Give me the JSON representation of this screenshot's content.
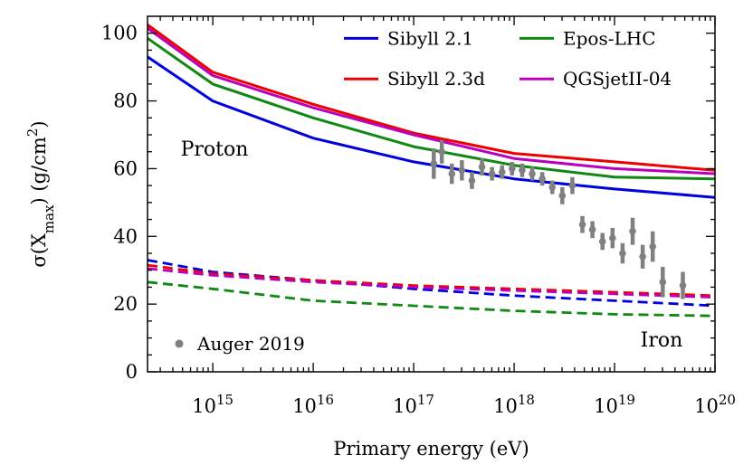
{
  "chart_data": {
    "type": "line",
    "xlabel": "Primary energy (eV)",
    "ylabel_prefix": "σ(X",
    "ylabel_sub": "max",
    "ylabel_mid": ") (g/cm",
    "ylabel_sup": "2",
    "ylabel_suffix": ")",
    "xscale": "log10",
    "xlim": [
      14.35,
      20.0
    ],
    "ylim": [
      0,
      105
    ],
    "x_ticks": [
      {
        "exp": 15,
        "base": "10",
        "power": "15"
      },
      {
        "exp": 16,
        "base": "10",
        "power": "16"
      },
      {
        "exp": 17,
        "base": "10",
        "power": "17"
      },
      {
        "exp": 18,
        "base": "10",
        "power": "18"
      },
      {
        "exp": 19,
        "base": "10",
        "power": "19"
      },
      {
        "exp": 20,
        "base": "10",
        "power": "20"
      }
    ],
    "y_ticks": [
      {
        "value": 0,
        "label": "0"
      },
      {
        "value": 20,
        "label": "20"
      },
      {
        "value": 40,
        "label": "40"
      },
      {
        "value": 60,
        "label": "60"
      },
      {
        "value": 80,
        "label": "80"
      },
      {
        "value": 100,
        "label": "100"
      }
    ],
    "series": [
      {
        "name": "Sibyll 2.1",
        "color": "#0000dd",
        "group": "proton",
        "style": "solid",
        "log_x": [
          14.35,
          15.0,
          16.0,
          17.0,
          18.0,
          19.0,
          20.0
        ],
        "y": [
          93.0,
          80.0,
          69.0,
          62.0,
          57.0,
          54.0,
          51.5
        ]
      },
      {
        "name": "Sibyll 2.3d",
        "color": "#ee0000",
        "group": "proton",
        "style": "solid",
        "log_x": [
          14.35,
          15.0,
          16.0,
          17.0,
          18.0,
          19.0,
          20.0
        ],
        "y": [
          102.5,
          88.5,
          79.0,
          70.5,
          64.5,
          62.0,
          59.5
        ]
      },
      {
        "name": "Epos-LHC",
        "color": "#118811",
        "group": "proton",
        "style": "solid",
        "log_x": [
          14.35,
          15.0,
          16.0,
          17.0,
          18.0,
          19.0,
          20.0
        ],
        "y": [
          98.5,
          85.0,
          75.0,
          66.5,
          61.0,
          57.5,
          57.0
        ]
      },
      {
        "name": "QGSjetII-04",
        "color": "#bb00bb",
        "group": "proton",
        "style": "solid",
        "log_x": [
          14.35,
          15.0,
          16.0,
          17.0,
          18.0,
          19.0,
          20.0
        ],
        "y": [
          101.5,
          87.5,
          78.0,
          70.0,
          63.0,
          60.0,
          58.5
        ]
      },
      {
        "name": "Sibyll 2.1",
        "color": "#0000dd",
        "group": "iron",
        "style": "dashed",
        "log_x": [
          14.35,
          15.0,
          16.0,
          17.0,
          18.0,
          19.0,
          20.0
        ],
        "y": [
          33.0,
          29.5,
          27.0,
          24.5,
          22.5,
          21.0,
          19.5
        ]
      },
      {
        "name": "Sibyll 2.3d",
        "color": "#ee0000",
        "group": "iron",
        "style": "dashed",
        "log_x": [
          14.35,
          15.0,
          16.0,
          17.0,
          18.0,
          19.0,
          20.0
        ],
        "y": [
          31.5,
          29.0,
          27.0,
          25.5,
          24.5,
          23.5,
          22.5
        ]
      },
      {
        "name": "Epos-LHC",
        "color": "#118811",
        "group": "iron",
        "style": "dashed",
        "log_x": [
          14.35,
          15.0,
          16.0,
          17.0,
          18.0,
          19.0,
          20.0
        ],
        "y": [
          26.5,
          24.5,
          21.0,
          19.5,
          18.0,
          17.0,
          16.5
        ]
      },
      {
        "name": "QGSjetII-04",
        "color": "#bb00bb",
        "group": "iron",
        "style": "dashed",
        "log_x": [
          14.35,
          15.0,
          16.0,
          17.0,
          18.0,
          19.0,
          20.0
        ],
        "y": [
          30.5,
          28.5,
          26.5,
          25.0,
          24.0,
          23.0,
          22.0
        ]
      }
    ],
    "data_points": {
      "name": "Auger 2019",
      "color": "#808080",
      "points": [
        {
          "log_x": 17.2,
          "y": 61.5,
          "err": 4.5
        },
        {
          "log_x": 17.28,
          "y": 65.0,
          "err": 3.5
        },
        {
          "log_x": 17.38,
          "y": 58.5,
          "err": 3.0
        },
        {
          "log_x": 17.48,
          "y": 59.5,
          "err": 3.0
        },
        {
          "log_x": 17.58,
          "y": 56.5,
          "err": 2.5
        },
        {
          "log_x": 17.68,
          "y": 60.5,
          "err": 2.5
        },
        {
          "log_x": 17.78,
          "y": 58.5,
          "err": 2.0
        },
        {
          "log_x": 17.88,
          "y": 59.0,
          "err": 2.0
        },
        {
          "log_x": 17.98,
          "y": 60.0,
          "err": 2.0
        },
        {
          "log_x": 18.08,
          "y": 59.5,
          "err": 2.0
        },
        {
          "log_x": 18.18,
          "y": 58.5,
          "err": 2.0
        },
        {
          "log_x": 18.28,
          "y": 57.0,
          "err": 2.0
        },
        {
          "log_x": 18.38,
          "y": 54.5,
          "err": 2.0
        },
        {
          "log_x": 18.48,
          "y": 52.0,
          "err": 2.5
        },
        {
          "log_x": 18.58,
          "y": 55.0,
          "err": 2.5
        },
        {
          "log_x": 18.68,
          "y": 43.5,
          "err": 2.5
        },
        {
          "log_x": 18.78,
          "y": 42.0,
          "err": 2.5
        },
        {
          "log_x": 18.88,
          "y": 38.5,
          "err": 2.5
        },
        {
          "log_x": 18.98,
          "y": 39.5,
          "err": 3.0
        },
        {
          "log_x": 19.08,
          "y": 35.0,
          "err": 3.0
        },
        {
          "log_x": 19.18,
          "y": 41.5,
          "err": 4.0
        },
        {
          "log_x": 19.28,
          "y": 34.0,
          "err": 3.5
        },
        {
          "log_x": 19.38,
          "y": 37.0,
          "err": 4.5
        },
        {
          "log_x": 19.48,
          "y": 26.5,
          "err": 4.5
        },
        {
          "log_x": 19.68,
          "y": 25.5,
          "err": 4.0
        }
      ]
    },
    "annotations": [
      {
        "id": "proton",
        "text": "Proton"
      },
      {
        "id": "iron",
        "text": "Iron"
      }
    ],
    "legend": {
      "placement": "top-right",
      "columns": 2,
      "entries": [
        "Sibyll 2.1",
        "Epos-LHC",
        "Sibyll 2.3d",
        "QGSjetII-04"
      ]
    },
    "legend_points": {
      "placement": "bottom-left",
      "label": "Auger 2019"
    }
  }
}
